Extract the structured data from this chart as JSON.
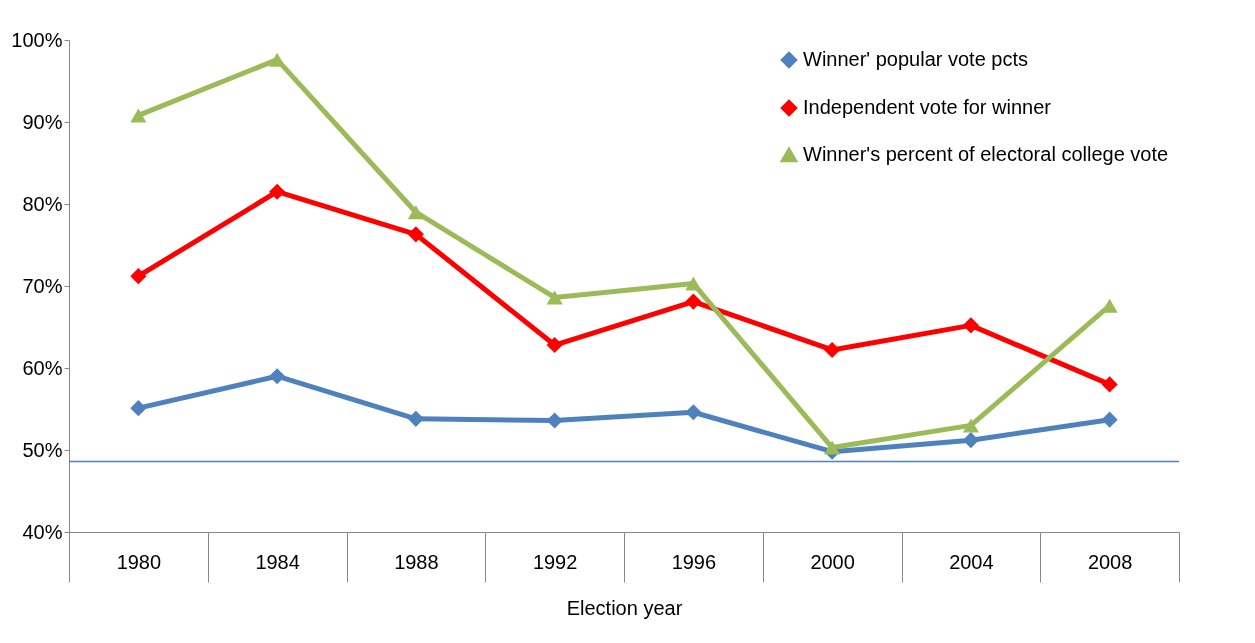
{
  "chart_data": {
    "type": "line",
    "xlabel": "Election year",
    "categories": [
      "1980",
      "1984",
      "1988",
      "1992",
      "1996",
      "2000",
      "2004",
      "2008"
    ],
    "series": [
      {
        "name": "Winner' popular vote pcts",
        "color": "#4f81bd",
        "marker": "diamond",
        "values": [
          55.1,
          59.0,
          53.8,
          53.6,
          54.6,
          49.8,
          51.2,
          53.7
        ]
      },
      {
        "name": "Independent vote for winner",
        "color": "#ff0000",
        "marker": "diamond",
        "values": [
          71.2,
          81.5,
          76.3,
          62.8,
          68.1,
          62.2,
          65.2,
          58.0
        ]
      },
      {
        "name": "Winner's percent of electoral college vote",
        "color": "#9bbb59",
        "marker": "triangle",
        "values": [
          90.8,
          97.6,
          79.0,
          68.6,
          70.3,
          50.3,
          53.0,
          67.6
        ]
      }
    ],
    "ylim": [
      40,
      100
    ],
    "yticks": [
      {
        "value": 40,
        "label": "40%"
      },
      {
        "value": 50,
        "label": "50%"
      },
      {
        "value": 60,
        "label": "60%"
      },
      {
        "value": 70,
        "label": "70%"
      },
      {
        "value": 80,
        "label": "80%"
      },
      {
        "value": 90,
        "label": "90%"
      },
      {
        "value": 100,
        "label": "100%"
      }
    ],
    "ref_lines": [
      {
        "axis": "y",
        "value": 48.6,
        "color": "#4f81bd"
      }
    ],
    "grid": false,
    "legend": "top right"
  }
}
